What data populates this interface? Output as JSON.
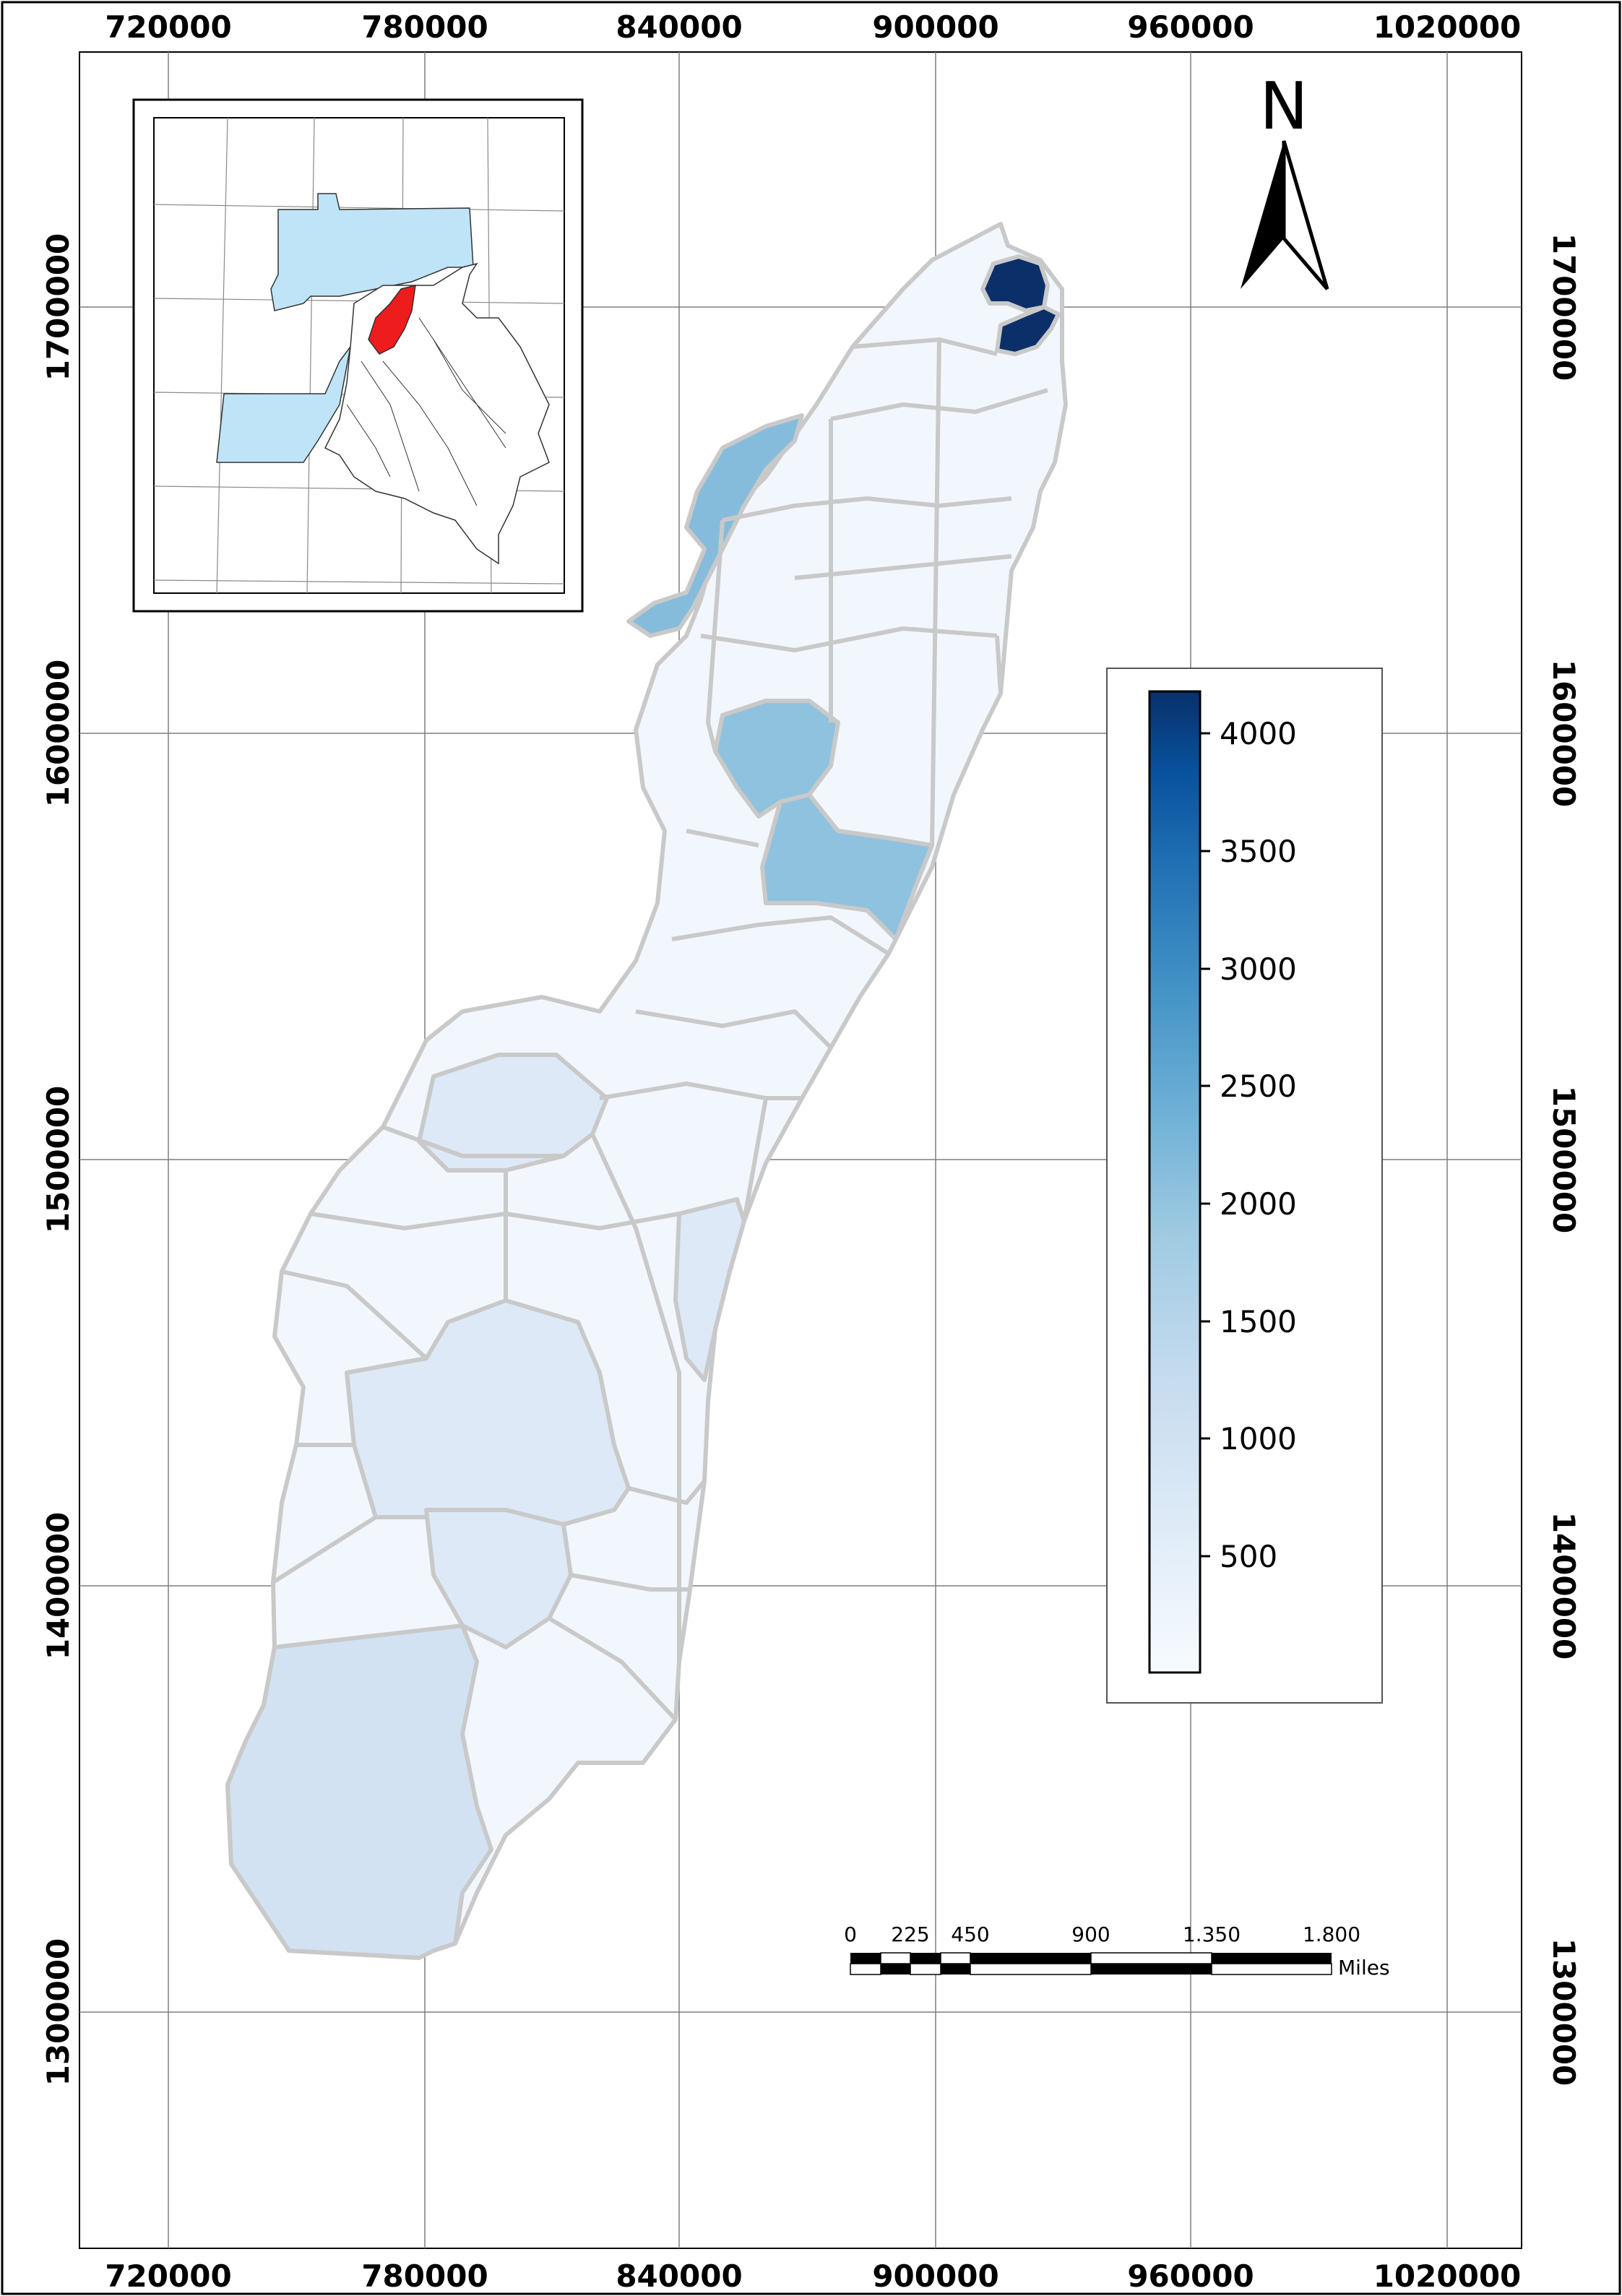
{
  "map": {
    "x_ticks": [
      "720000",
      "780000",
      "840000",
      "900000",
      "960000",
      "1020000"
    ],
    "y_ticks": [
      "1700000",
      "1600000",
      "1500000",
      "1400000",
      "1300000"
    ],
    "north_label": "N",
    "legend": {
      "labels": [
        "4000",
        "3500",
        "3000",
        "2500",
        "2000",
        "1500",
        "1000",
        "500"
      ],
      "colors": [
        "#f7fbff",
        "#deebf7",
        "#c6dbef",
        "#9ecae1",
        "#6baed6",
        "#4292c6",
        "#2171b5",
        "#08519c",
        "#08306b"
      ]
    },
    "scale_bar": {
      "labels": [
        "0",
        "225",
        "450",
        "900",
        "1.350",
        "1.800"
      ],
      "units": "Miles"
    },
    "region_colors": {
      "very_low": "#f2f7fd",
      "low": "#dde9f6",
      "low_mid": "#d2e2f2",
      "mid": "#85bcdc",
      "mid2": "#8fc2df",
      "high": "#0b2f68"
    },
    "inset": {
      "highlight_color": "#ee1c1c",
      "region_color": "#bfe4f7"
    }
  }
}
